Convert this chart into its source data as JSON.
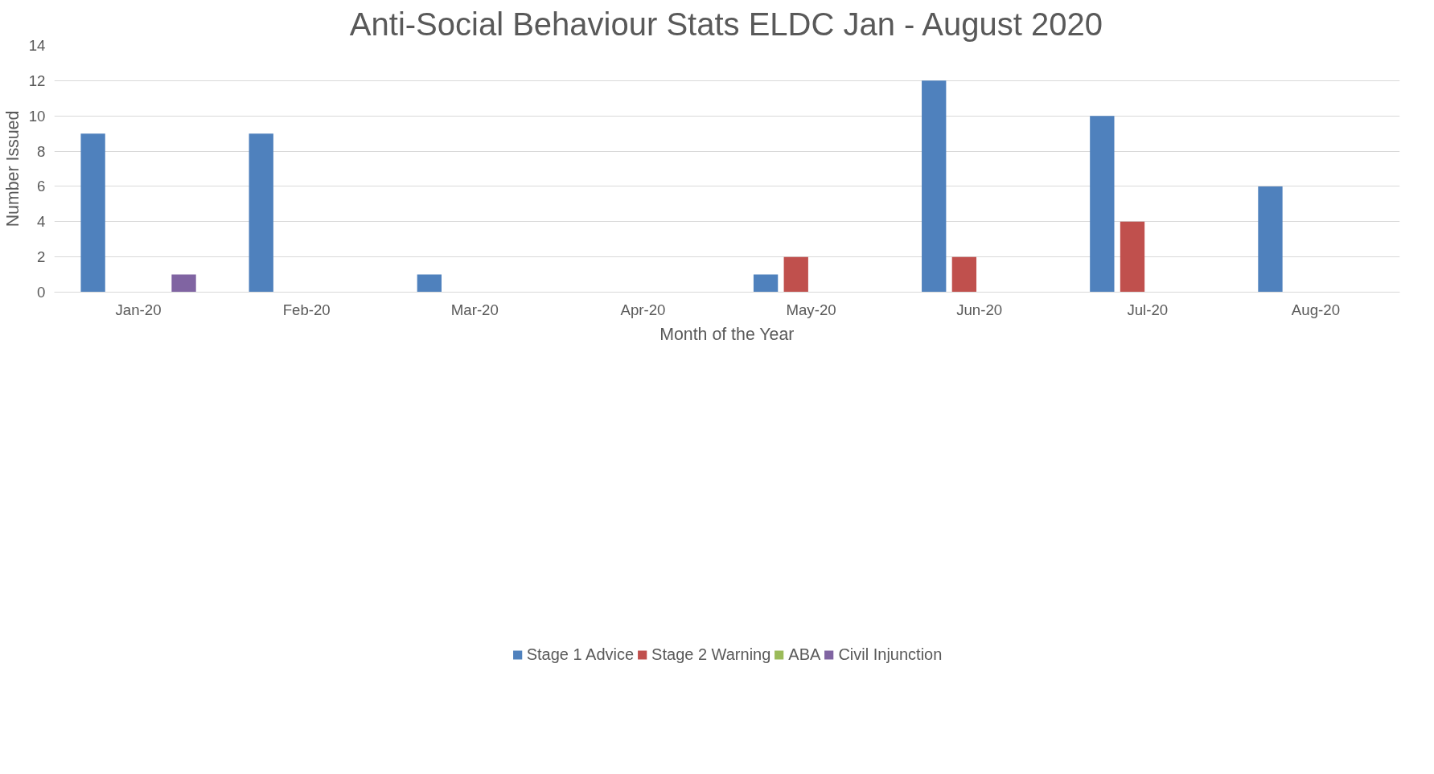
{
  "chart_data": {
    "type": "bar",
    "title": "Anti-Social Behaviour Stats ELDC Jan - August 2020",
    "xlabel": "Month of the Year",
    "ylabel": "Number Issued",
    "categories": [
      "Jan-20",
      "Feb-20",
      "Mar-20",
      "Apr-20",
      "May-20",
      "Jun-20",
      "Jul-20",
      "Aug-20"
    ],
    "series": [
      {
        "name": "Stage 1 Advice",
        "color": "#4f81bd",
        "values": [
          9,
          9,
          1,
          0,
          1,
          12,
          10,
          6
        ]
      },
      {
        "name": "Stage 2 Warning",
        "color": "#c0504d",
        "values": [
          0,
          0,
          0,
          0,
          2,
          2,
          4,
          0
        ]
      },
      {
        "name": "ABA",
        "color": "#9bbb59",
        "values": [
          0,
          0,
          0,
          0,
          0,
          0,
          0,
          0
        ]
      },
      {
        "name": "Civil Injunction",
        "color": "#8064a2",
        "values": [
          1,
          0,
          0,
          0,
          0,
          0,
          0,
          0
        ]
      }
    ],
    "ylim": [
      0,
      14
    ],
    "yticks": [
      0,
      2,
      4,
      6,
      8,
      10,
      12,
      14
    ],
    "grid": "y",
    "legend": "bottom"
  }
}
